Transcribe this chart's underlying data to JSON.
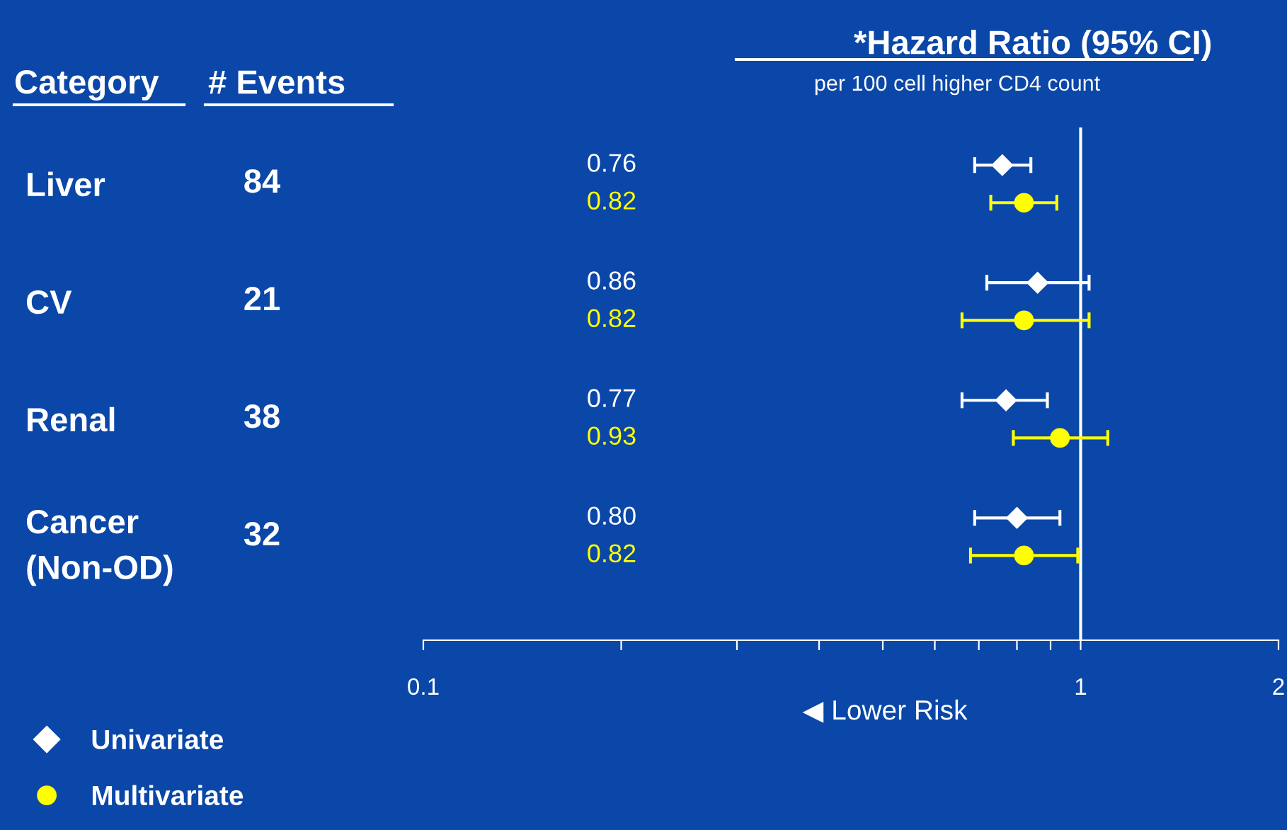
{
  "chart_data": {
    "type": "scatter",
    "title": "*Hazard Ratio (95% CI)",
    "subtitle": "per 100 cell higher CD4 count",
    "orientation": "horizontal",
    "categories": [
      "Liver",
      "CV",
      "Renal",
      "Cancer\n(Non-OD)"
    ],
    "series": [
      {
        "name": "Univariate",
        "color": "#ffffff",
        "marker": "diamond",
        "values": [
          0.76,
          0.86,
          0.77,
          0.8
        ],
        "errors": [
          [
            0.69,
            0.84
          ],
          [
            0.72,
            1.03
          ],
          [
            0.66,
            0.89
          ],
          [
            0.69,
            0.93
          ]
        ]
      },
      {
        "name": "Multivariate",
        "color": "#ffff00",
        "marker": "circle",
        "values": [
          0.82,
          0.82,
          0.93,
          0.82
        ],
        "errors": [
          [
            0.73,
            0.92
          ],
          [
            0.66,
            1.03
          ],
          [
            0.79,
            1.1
          ],
          [
            0.68,
            0.99
          ]
        ]
      }
    ],
    "log": "x",
    "xlim": [
      0.1,
      2
    ],
    "xticks": [
      0.1,
      {
        "value": 0.2,
        "label": null
      },
      {
        "value": 0.3,
        "label": null
      },
      {
        "value": 0.4,
        "label": null
      },
      {
        "value": 0.5,
        "label": null
      },
      {
        "value": 0.6,
        "label": null
      },
      {
        "value": 0.7,
        "label": null
      },
      {
        "value": 0.8,
        "label": null
      },
      {
        "value": 0.9,
        "label": null
      },
      1,
      2
    ],
    "ref_lines": [
      {
        "axis": "x",
        "value": 1,
        "color": "#ffffff"
      }
    ],
    "annotations": [
      "Category",
      "# Events",
      "84",
      "21",
      "38",
      "32",
      "0.76",
      "0.82",
      "0.86",
      "0.82",
      "0.77",
      "0.93",
      "0.80",
      "0.82",
      "◀ Lower Risk"
    ],
    "legend": "bottom left",
    "grid": false
  }
}
